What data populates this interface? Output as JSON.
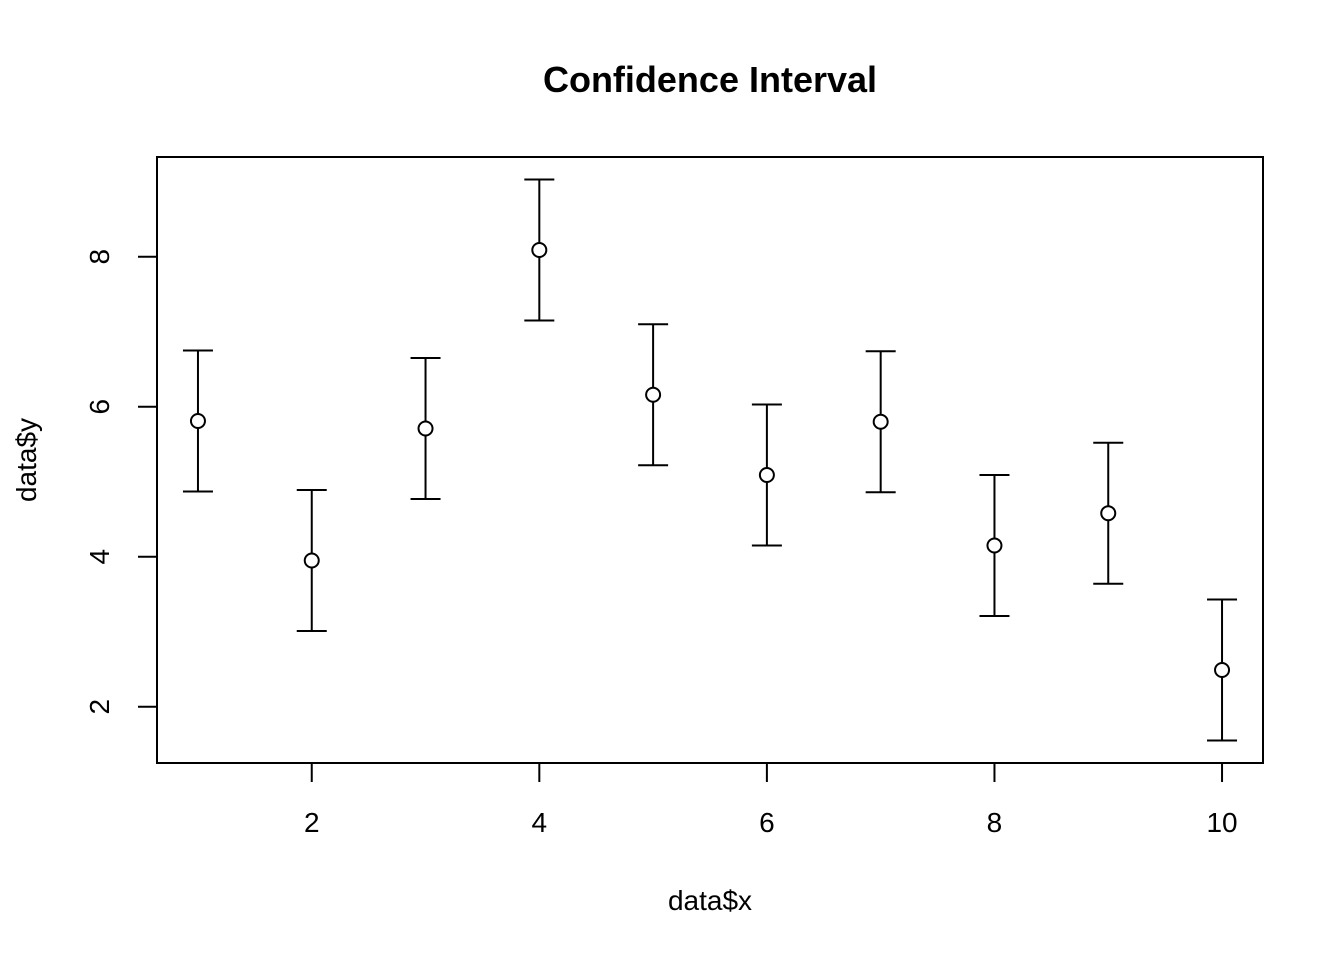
{
  "chart_data": {
    "type": "scatter",
    "title": "Confidence Interval",
    "xlabel": "data$x",
    "ylabel": "data$y",
    "xlim": [
      0.64,
      10.36
    ],
    "ylim": [
      1.25,
      9.33
    ],
    "x_ticks": [
      2,
      4,
      6,
      8,
      10
    ],
    "y_ticks": [
      2,
      4,
      6,
      8
    ],
    "grid": false,
    "marker": "open-circle",
    "error_bars": true,
    "series": [
      {
        "x": [
          1,
          2,
          3,
          4,
          5,
          6,
          7,
          8,
          9,
          10
        ],
        "y": [
          5.81,
          3.95,
          5.71,
          8.09,
          6.16,
          5.09,
          5.8,
          4.15,
          4.58,
          2.49
        ],
        "lower": [
          4.87,
          3.01,
          4.77,
          7.15,
          5.22,
          4.15,
          4.86,
          3.21,
          3.64,
          1.55
        ],
        "upper": [
          6.75,
          4.89,
          6.65,
          9.03,
          7.1,
          6.03,
          6.74,
          5.09,
          5.52,
          3.43
        ]
      }
    ]
  }
}
